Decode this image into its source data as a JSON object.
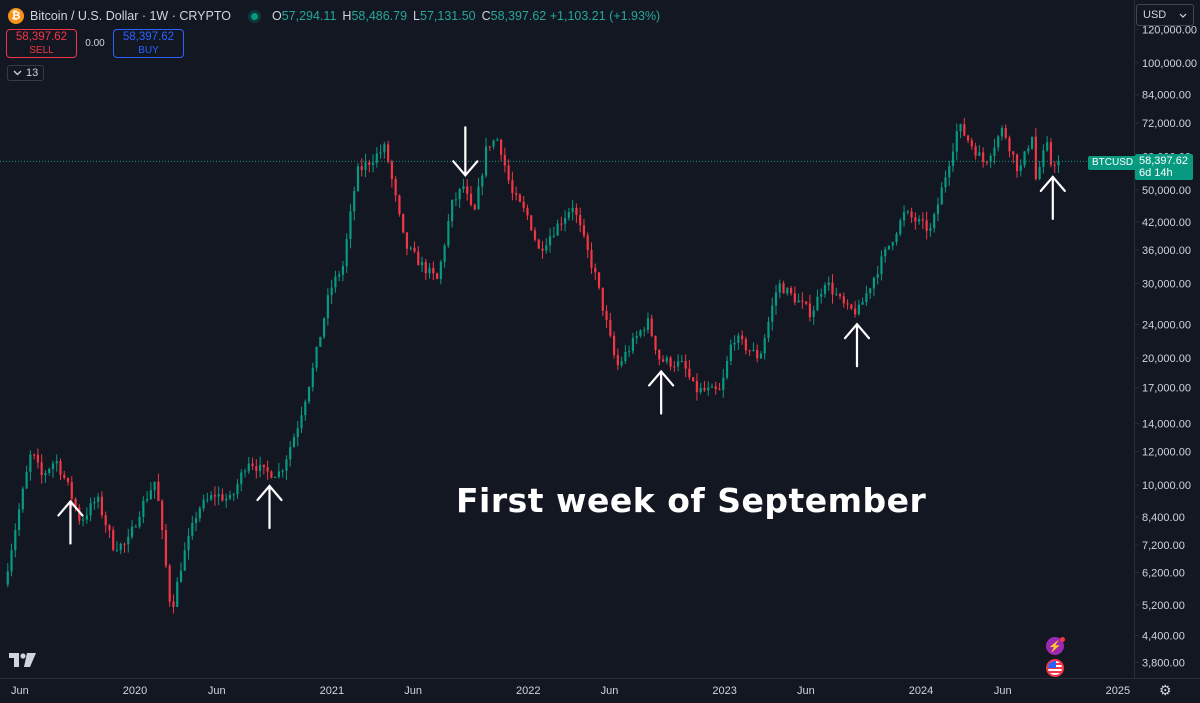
{
  "header": {
    "symbol_logo": "₿",
    "title": "Bitcoin / U.S. Dollar · 1W · CRYPTO",
    "ohlc": [
      {
        "key": "O",
        "value": "57,294.11"
      },
      {
        "key": "H",
        "value": "58,486.79"
      },
      {
        "key": "L",
        "value": "57,131.50"
      },
      {
        "key": "C",
        "value": "58,397.62 +1,103.21 (+1.93%)"
      }
    ]
  },
  "trade": {
    "sell_price": "58,397.62",
    "sell_label": "SELL",
    "spread": "0.00",
    "buy_price": "58,397.62",
    "buy_label": "BUY"
  },
  "indicator_toggle": {
    "count": "13"
  },
  "currency": {
    "selected": "USD"
  },
  "annotation": "First week of September",
  "price_label": {
    "symbol": "BTCUSD",
    "price": "58,397.62",
    "countdown": "6d 14h"
  },
  "colors": {
    "up": "#089981",
    "down": "#f23645",
    "background": "#131722",
    "annotation": "#ffffff"
  },
  "icons": [
    "tradingview-logo",
    "flash-icon",
    "us-flag-icon",
    "settings-icon",
    "chevron-down-icon"
  ],
  "chart_data": {
    "type": "candlestick",
    "title": "Bitcoin / U.S. Dollar · 1W · CRYPTO",
    "y_scale": "log",
    "y_ticks": [
      120000,
      100000,
      84000,
      72000,
      60000,
      50000,
      42000,
      36000,
      30000,
      24000,
      20000,
      17000,
      14000,
      12000,
      10000,
      8400,
      7200,
      6200,
      5200,
      4400,
      3800
    ],
    "y_tick_labels": [
      "120,000.00",
      "100,000.00",
      "84,000.00",
      "72,000.00",
      "60,000.00",
      "50,000.00",
      "42,000.00",
      "36,000.00",
      "30,000.00",
      "24,000.00",
      "20,000.00",
      "17,000.00",
      "14,000.00",
      "12,000.00",
      "10,000.00",
      "8,400.00",
      "7,200.00",
      "6,200.00",
      "5,200.00",
      "4,400.00",
      "3,800.00"
    ],
    "x_ticks": [
      {
        "label": "Jun",
        "date": "2019-06-01"
      },
      {
        "label": "2020",
        "date": "2020-01-01"
      },
      {
        "label": "Jun",
        "date": "2020-06-01"
      },
      {
        "label": "2021",
        "date": "2021-01-01"
      },
      {
        "label": "Jun",
        "date": "2021-06-01"
      },
      {
        "label": "2022",
        "date": "2022-01-01"
      },
      {
        "label": "Jun",
        "date": "2022-06-01"
      },
      {
        "label": "2023",
        "date": "2023-01-01"
      },
      {
        "label": "Jun",
        "date": "2023-06-01"
      },
      {
        "label": "2024",
        "date": "2024-01-01"
      },
      {
        "label": "Jun",
        "date": "2024-06-01"
      },
      {
        "label": "2025",
        "date": "2025-01-01"
      }
    ],
    "current_price": 58397.62,
    "price_path": [
      [
        "2019-05-01",
        5400
      ],
      [
        "2019-06-01",
        8500
      ],
      [
        "2019-06-26",
        12000
      ],
      [
        "2019-07-15",
        10500
      ],
      [
        "2019-08-10",
        11500
      ],
      [
        "2019-09-01",
        10000
      ],
      [
        "2019-09-25",
        8200
      ],
      [
        "2019-10-26",
        9300
      ],
      [
        "2019-11-25",
        7200
      ],
      [
        "2019-12-20",
        7200
      ],
      [
        "2020-01-15",
        8800
      ],
      [
        "2020-02-12",
        10300
      ],
      [
        "2020-03-12",
        5000
      ],
      [
        "2020-04-01",
        6600
      ],
      [
        "2020-05-01",
        8800
      ],
      [
        "2020-06-01",
        9500
      ],
      [
        "2020-07-01",
        9200
      ],
      [
        "2020-08-01",
        11500
      ],
      [
        "2020-09-01",
        10700
      ],
      [
        "2020-10-01",
        10700
      ],
      [
        "2020-11-01",
        13700
      ],
      [
        "2020-12-01",
        19000
      ],
      [
        "2021-01-01",
        29000
      ],
      [
        "2021-01-25",
        33000
      ],
      [
        "2021-02-20",
        55000
      ],
      [
        "2021-04-14",
        63000
      ],
      [
        "2021-05-20",
        37000
      ],
      [
        "2021-06-22",
        33000
      ],
      [
        "2021-07-20",
        30500
      ],
      [
        "2021-08-15",
        46000
      ],
      [
        "2021-09-06",
        51000
      ],
      [
        "2021-09-25",
        43000
      ],
      [
        "2021-10-20",
        64000
      ],
      [
        "2021-11-10",
        66000
      ],
      [
        "2021-12-05",
        49000
      ],
      [
        "2022-01-05",
        43000
      ],
      [
        "2022-01-24",
        36000
      ],
      [
        "2022-03-28",
        46000
      ],
      [
        "2022-05-10",
        31000
      ],
      [
        "2022-06-18",
        19000
      ],
      [
        "2022-08-14",
        24500
      ],
      [
        "2022-09-06",
        19800
      ],
      [
        "2022-10-20",
        19200
      ],
      [
        "2022-11-10",
        16800
      ],
      [
        "2022-12-28",
        16600
      ],
      [
        "2023-01-20",
        22500
      ],
      [
        "2023-03-10",
        20000
      ],
      [
        "2023-04-14",
        30000
      ],
      [
        "2023-06-15",
        25500
      ],
      [
        "2023-07-10",
        30500
      ],
      [
        "2023-08-20",
        26000
      ],
      [
        "2023-09-10",
        25800
      ],
      [
        "2023-10-23",
        34000
      ],
      [
        "2023-12-05",
        44000
      ],
      [
        "2024-01-23",
        40000
      ],
      [
        "2024-03-14",
        71000
      ],
      [
        "2024-05-01",
        58000
      ],
      [
        "2024-06-05",
        70000
      ],
      [
        "2024-07-05",
        55000
      ],
      [
        "2024-07-29",
        68000
      ],
      [
        "2024-08-05",
        53000
      ],
      [
        "2024-08-25",
        64000
      ],
      [
        "2024-09-03",
        57000
      ],
      [
        "2024-09-09",
        58397.62
      ]
    ],
    "annotations": [
      {
        "type": "arrow-up",
        "date": "2019-09-03",
        "text": ""
      },
      {
        "type": "arrow-up",
        "date": "2020-09-07",
        "text": ""
      },
      {
        "type": "arrow-down",
        "date": "2021-09-06",
        "text": ""
      },
      {
        "type": "arrow-up",
        "date": "2022-09-05",
        "text": ""
      },
      {
        "type": "arrow-up",
        "date": "2023-09-04",
        "text": ""
      },
      {
        "type": "arrow-up",
        "date": "2024-09-02",
        "text": ""
      }
    ],
    "annotation_text": "First week of September"
  }
}
